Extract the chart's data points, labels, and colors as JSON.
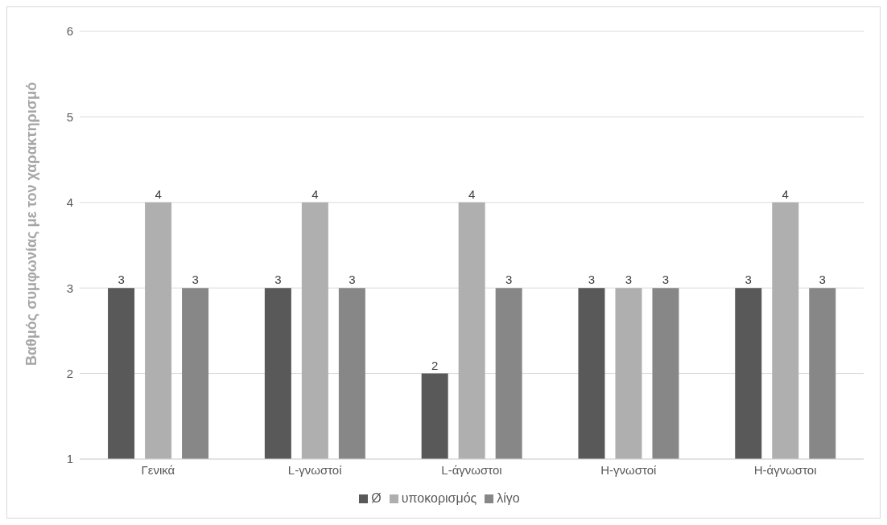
{
  "chart_data": {
    "type": "bar",
    "ylabel": "Βαθμός συμφωνίας με τον χαρακτηρισμό",
    "categories": [
      "Γενικά",
      "L-γνωστοί",
      "L-άγνωστοι",
      "H-γνωστοί",
      "H-άγνωστοι"
    ],
    "series": [
      {
        "name": "Ø",
        "color": "#595959",
        "values": [
          3,
          3,
          2,
          3,
          3
        ]
      },
      {
        "name": "υποκορισμός",
        "color": "#afafaf",
        "values": [
          4,
          4,
          4,
          3,
          4
        ]
      },
      {
        "name": "λίγο",
        "color": "#878787",
        "values": [
          3,
          3,
          3,
          3,
          3
        ]
      }
    ],
    "ylim": [
      1,
      6
    ],
    "yticks": [
      1,
      2,
      3,
      4,
      5,
      6
    ],
    "grid": "y",
    "legend": "bottom",
    "data_labels": true
  }
}
